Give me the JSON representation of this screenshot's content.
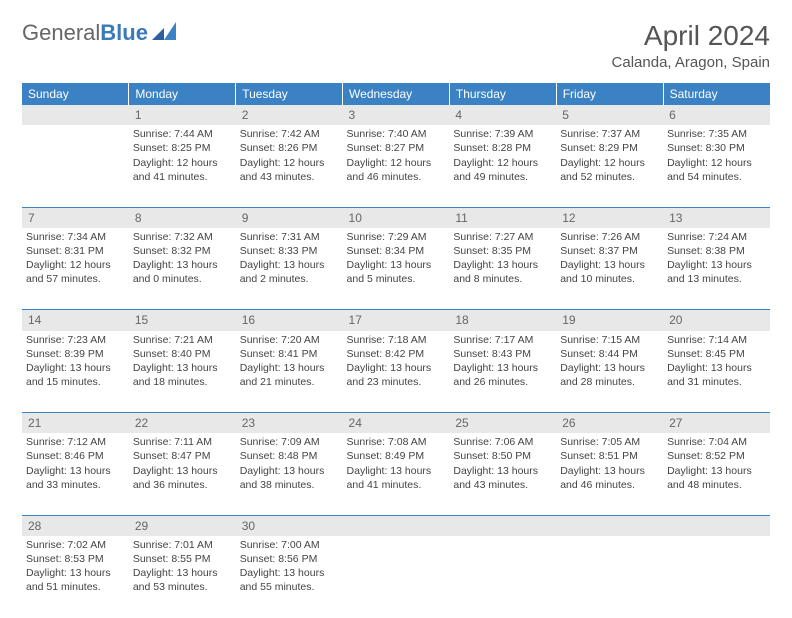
{
  "logo": {
    "part1": "General",
    "part2": "Blue"
  },
  "title": "April 2024",
  "location": "Calanda, Aragon, Spain",
  "colors": {
    "header_bg": "#3b82c4",
    "header_text": "#ffffff",
    "daynum_bg": "#e8e8e8",
    "daynum_text": "#666666",
    "body_text": "#444444",
    "rule": "#3b82c4",
    "logo_accent": "#3b7ab8"
  },
  "weekdays": [
    "Sunday",
    "Monday",
    "Tuesday",
    "Wednesday",
    "Thursday",
    "Friday",
    "Saturday"
  ],
  "weeks": [
    {
      "nums": [
        "",
        "1",
        "2",
        "3",
        "4",
        "5",
        "6"
      ],
      "cells": [
        null,
        {
          "sunrise": "Sunrise: 7:44 AM",
          "sunset": "Sunset: 8:25 PM",
          "day1": "Daylight: 12 hours",
          "day2": "and 41 minutes."
        },
        {
          "sunrise": "Sunrise: 7:42 AM",
          "sunset": "Sunset: 8:26 PM",
          "day1": "Daylight: 12 hours",
          "day2": "and 43 minutes."
        },
        {
          "sunrise": "Sunrise: 7:40 AM",
          "sunset": "Sunset: 8:27 PM",
          "day1": "Daylight: 12 hours",
          "day2": "and 46 minutes."
        },
        {
          "sunrise": "Sunrise: 7:39 AM",
          "sunset": "Sunset: 8:28 PM",
          "day1": "Daylight: 12 hours",
          "day2": "and 49 minutes."
        },
        {
          "sunrise": "Sunrise: 7:37 AM",
          "sunset": "Sunset: 8:29 PM",
          "day1": "Daylight: 12 hours",
          "day2": "and 52 minutes."
        },
        {
          "sunrise": "Sunrise: 7:35 AM",
          "sunset": "Sunset: 8:30 PM",
          "day1": "Daylight: 12 hours",
          "day2": "and 54 minutes."
        }
      ]
    },
    {
      "nums": [
        "7",
        "8",
        "9",
        "10",
        "11",
        "12",
        "13"
      ],
      "cells": [
        {
          "sunrise": "Sunrise: 7:34 AM",
          "sunset": "Sunset: 8:31 PM",
          "day1": "Daylight: 12 hours",
          "day2": "and 57 minutes."
        },
        {
          "sunrise": "Sunrise: 7:32 AM",
          "sunset": "Sunset: 8:32 PM",
          "day1": "Daylight: 13 hours",
          "day2": "and 0 minutes."
        },
        {
          "sunrise": "Sunrise: 7:31 AM",
          "sunset": "Sunset: 8:33 PM",
          "day1": "Daylight: 13 hours",
          "day2": "and 2 minutes."
        },
        {
          "sunrise": "Sunrise: 7:29 AM",
          "sunset": "Sunset: 8:34 PM",
          "day1": "Daylight: 13 hours",
          "day2": "and 5 minutes."
        },
        {
          "sunrise": "Sunrise: 7:27 AM",
          "sunset": "Sunset: 8:35 PM",
          "day1": "Daylight: 13 hours",
          "day2": "and 8 minutes."
        },
        {
          "sunrise": "Sunrise: 7:26 AM",
          "sunset": "Sunset: 8:37 PM",
          "day1": "Daylight: 13 hours",
          "day2": "and 10 minutes."
        },
        {
          "sunrise": "Sunrise: 7:24 AM",
          "sunset": "Sunset: 8:38 PM",
          "day1": "Daylight: 13 hours",
          "day2": "and 13 minutes."
        }
      ]
    },
    {
      "nums": [
        "14",
        "15",
        "16",
        "17",
        "18",
        "19",
        "20"
      ],
      "cells": [
        {
          "sunrise": "Sunrise: 7:23 AM",
          "sunset": "Sunset: 8:39 PM",
          "day1": "Daylight: 13 hours",
          "day2": "and 15 minutes."
        },
        {
          "sunrise": "Sunrise: 7:21 AM",
          "sunset": "Sunset: 8:40 PM",
          "day1": "Daylight: 13 hours",
          "day2": "and 18 minutes."
        },
        {
          "sunrise": "Sunrise: 7:20 AM",
          "sunset": "Sunset: 8:41 PM",
          "day1": "Daylight: 13 hours",
          "day2": "and 21 minutes."
        },
        {
          "sunrise": "Sunrise: 7:18 AM",
          "sunset": "Sunset: 8:42 PM",
          "day1": "Daylight: 13 hours",
          "day2": "and 23 minutes."
        },
        {
          "sunrise": "Sunrise: 7:17 AM",
          "sunset": "Sunset: 8:43 PM",
          "day1": "Daylight: 13 hours",
          "day2": "and 26 minutes."
        },
        {
          "sunrise": "Sunrise: 7:15 AM",
          "sunset": "Sunset: 8:44 PM",
          "day1": "Daylight: 13 hours",
          "day2": "and 28 minutes."
        },
        {
          "sunrise": "Sunrise: 7:14 AM",
          "sunset": "Sunset: 8:45 PM",
          "day1": "Daylight: 13 hours",
          "day2": "and 31 minutes."
        }
      ]
    },
    {
      "nums": [
        "21",
        "22",
        "23",
        "24",
        "25",
        "26",
        "27"
      ],
      "cells": [
        {
          "sunrise": "Sunrise: 7:12 AM",
          "sunset": "Sunset: 8:46 PM",
          "day1": "Daylight: 13 hours",
          "day2": "and 33 minutes."
        },
        {
          "sunrise": "Sunrise: 7:11 AM",
          "sunset": "Sunset: 8:47 PM",
          "day1": "Daylight: 13 hours",
          "day2": "and 36 minutes."
        },
        {
          "sunrise": "Sunrise: 7:09 AM",
          "sunset": "Sunset: 8:48 PM",
          "day1": "Daylight: 13 hours",
          "day2": "and 38 minutes."
        },
        {
          "sunrise": "Sunrise: 7:08 AM",
          "sunset": "Sunset: 8:49 PM",
          "day1": "Daylight: 13 hours",
          "day2": "and 41 minutes."
        },
        {
          "sunrise": "Sunrise: 7:06 AM",
          "sunset": "Sunset: 8:50 PM",
          "day1": "Daylight: 13 hours",
          "day2": "and 43 minutes."
        },
        {
          "sunrise": "Sunrise: 7:05 AM",
          "sunset": "Sunset: 8:51 PM",
          "day1": "Daylight: 13 hours",
          "day2": "and 46 minutes."
        },
        {
          "sunrise": "Sunrise: 7:04 AM",
          "sunset": "Sunset: 8:52 PM",
          "day1": "Daylight: 13 hours",
          "day2": "and 48 minutes."
        }
      ]
    },
    {
      "nums": [
        "28",
        "29",
        "30",
        "",
        "",
        "",
        ""
      ],
      "cells": [
        {
          "sunrise": "Sunrise: 7:02 AM",
          "sunset": "Sunset: 8:53 PM",
          "day1": "Daylight: 13 hours",
          "day2": "and 51 minutes."
        },
        {
          "sunrise": "Sunrise: 7:01 AM",
          "sunset": "Sunset: 8:55 PM",
          "day1": "Daylight: 13 hours",
          "day2": "and 53 minutes."
        },
        {
          "sunrise": "Sunrise: 7:00 AM",
          "sunset": "Sunset: 8:56 PM",
          "day1": "Daylight: 13 hours",
          "day2": "and 55 minutes."
        },
        null,
        null,
        null,
        null
      ]
    }
  ]
}
